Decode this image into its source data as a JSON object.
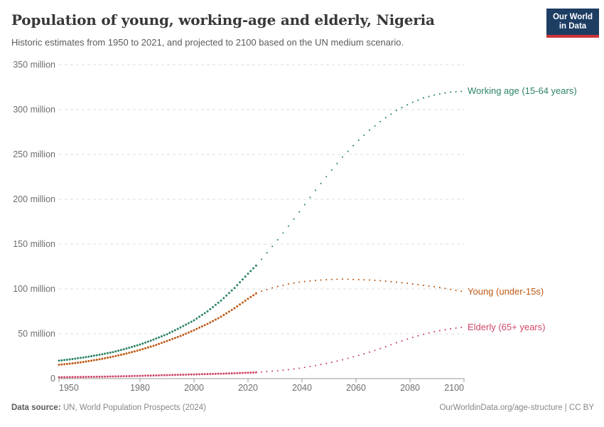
{
  "header": {
    "title": "Population of young, working-age and elderly, Nigeria",
    "subtitle": "Historic estimates from 1950 to 2021, and projected to 2100 based on the UN medium scenario.",
    "logo": {
      "line1": "Our World",
      "line2": "in Data",
      "bg_color": "#1d3d63",
      "bar_color": "#cb3438"
    }
  },
  "footer": {
    "source_label": "Data source:",
    "source_text": " UN, World Population Prospects (2024)",
    "credit": "OurWorldinData.org/age-structure | CC BY"
  },
  "chart_data": {
    "type": "line",
    "title": "Population of young, working-age and elderly, Nigeria",
    "units": "million people",
    "x_range": [
      1950,
      2100
    ],
    "y_range": [
      0,
      350
    ],
    "grid": true,
    "grid_color": "#dcdcdc",
    "axis_color": "#9a9a9a",
    "projection_start_year": 2023,
    "legend_position": "right-of-line-ends",
    "x_ticks": [
      {
        "value": 1950,
        "label": "1950"
      },
      {
        "value": 1980,
        "label": "1980"
      },
      {
        "value": 2000,
        "label": "2000"
      },
      {
        "value": 2020,
        "label": "2020"
      },
      {
        "value": 2040,
        "label": "2040"
      },
      {
        "value": 2060,
        "label": "2060"
      },
      {
        "value": 2080,
        "label": "2080"
      },
      {
        "value": 2100,
        "label": "2100"
      }
    ],
    "y_ticks": [
      {
        "value": 0,
        "label": "0"
      },
      {
        "value": 50,
        "label": "50 million"
      },
      {
        "value": 100,
        "label": "100 million"
      },
      {
        "value": 150,
        "label": "150 million"
      },
      {
        "value": 200,
        "label": "200 million"
      },
      {
        "value": 250,
        "label": "250 million"
      },
      {
        "value": 300,
        "label": "300 million"
      },
      {
        "value": 350,
        "label": "350 million"
      }
    ],
    "series": [
      {
        "id": "working-age",
        "label": "Working age (15-64 years)",
        "color": "#2C8465",
        "historic": [
          [
            1950,
            20
          ],
          [
            1955,
            21.8
          ],
          [
            1960,
            24
          ],
          [
            1965,
            26.6
          ],
          [
            1970,
            29.6
          ],
          [
            1975,
            33.5
          ],
          [
            1980,
            38
          ],
          [
            1985,
            43.5
          ],
          [
            1990,
            49.5
          ],
          [
            1995,
            57
          ],
          [
            2000,
            65
          ],
          [
            2005,
            75
          ],
          [
            2010,
            87
          ],
          [
            2015,
            101
          ],
          [
            2020,
            117
          ],
          [
            2023,
            126
          ]
        ],
        "projection": [
          [
            2023,
            126
          ],
          [
            2025,
            133
          ],
          [
            2030,
            151
          ],
          [
            2035,
            170
          ],
          [
            2040,
            190
          ],
          [
            2045,
            210
          ],
          [
            2050,
            229
          ],
          [
            2055,
            247
          ],
          [
            2060,
            263
          ],
          [
            2065,
            277
          ],
          [
            2070,
            289
          ],
          [
            2075,
            299
          ],
          [
            2080,
            307
          ],
          [
            2085,
            313
          ],
          [
            2090,
            317
          ],
          [
            2095,
            319.5
          ],
          [
            2100,
            320.5
          ]
        ]
      },
      {
        "id": "young",
        "label": "Young (under-15s)",
        "color": "#BE5915",
        "historic": [
          [
            1950,
            15.5
          ],
          [
            1955,
            17
          ],
          [
            1960,
            19
          ],
          [
            1965,
            21.5
          ],
          [
            1970,
            24.5
          ],
          [
            1975,
            28
          ],
          [
            1980,
            32
          ],
          [
            1985,
            36.5
          ],
          [
            1990,
            42
          ],
          [
            1995,
            47.5
          ],
          [
            2000,
            54
          ],
          [
            2005,
            61
          ],
          [
            2010,
            69
          ],
          [
            2015,
            78.5
          ],
          [
            2020,
            89
          ],
          [
            2023,
            95
          ]
        ],
        "projection": [
          [
            2023,
            95
          ],
          [
            2025,
            97.5
          ],
          [
            2030,
            102
          ],
          [
            2035,
            105.5
          ],
          [
            2040,
            108
          ],
          [
            2045,
            109.5
          ],
          [
            2050,
            110.5
          ],
          [
            2055,
            111
          ],
          [
            2060,
            110.5
          ],
          [
            2065,
            110
          ],
          [
            2070,
            109
          ],
          [
            2075,
            107.5
          ],
          [
            2080,
            106
          ],
          [
            2085,
            104
          ],
          [
            2090,
            102
          ],
          [
            2095,
            99.5
          ],
          [
            2100,
            97
          ]
        ]
      },
      {
        "id": "elderly",
        "label": "Elderly (65+ years)",
        "color": "#CE4869",
        "historic": [
          [
            1950,
            1.5
          ],
          [
            1955,
            1.7
          ],
          [
            1960,
            1.9
          ],
          [
            1965,
            2.1
          ],
          [
            1970,
            2.4
          ],
          [
            1975,
            2.7
          ],
          [
            1980,
            3.1
          ],
          [
            1985,
            3.5
          ],
          [
            1990,
            3.9
          ],
          [
            1995,
            4.3
          ],
          [
            2000,
            4.7
          ],
          [
            2005,
            5.1
          ],
          [
            2010,
            5.5
          ],
          [
            2015,
            6
          ],
          [
            2020,
            6.5
          ],
          [
            2023,
            6.9
          ]
        ],
        "projection": [
          [
            2023,
            6.9
          ],
          [
            2030,
            8.5
          ],
          [
            2035,
            10
          ],
          [
            2040,
            12
          ],
          [
            2045,
            14.5
          ],
          [
            2050,
            17.5
          ],
          [
            2055,
            21
          ],
          [
            2060,
            25
          ],
          [
            2065,
            29.5
          ],
          [
            2070,
            34.5
          ],
          [
            2075,
            40
          ],
          [
            2080,
            45
          ],
          [
            2085,
            49.5
          ],
          [
            2090,
            53
          ],
          [
            2095,
            55.5
          ],
          [
            2100,
            57.5
          ]
        ]
      }
    ]
  }
}
